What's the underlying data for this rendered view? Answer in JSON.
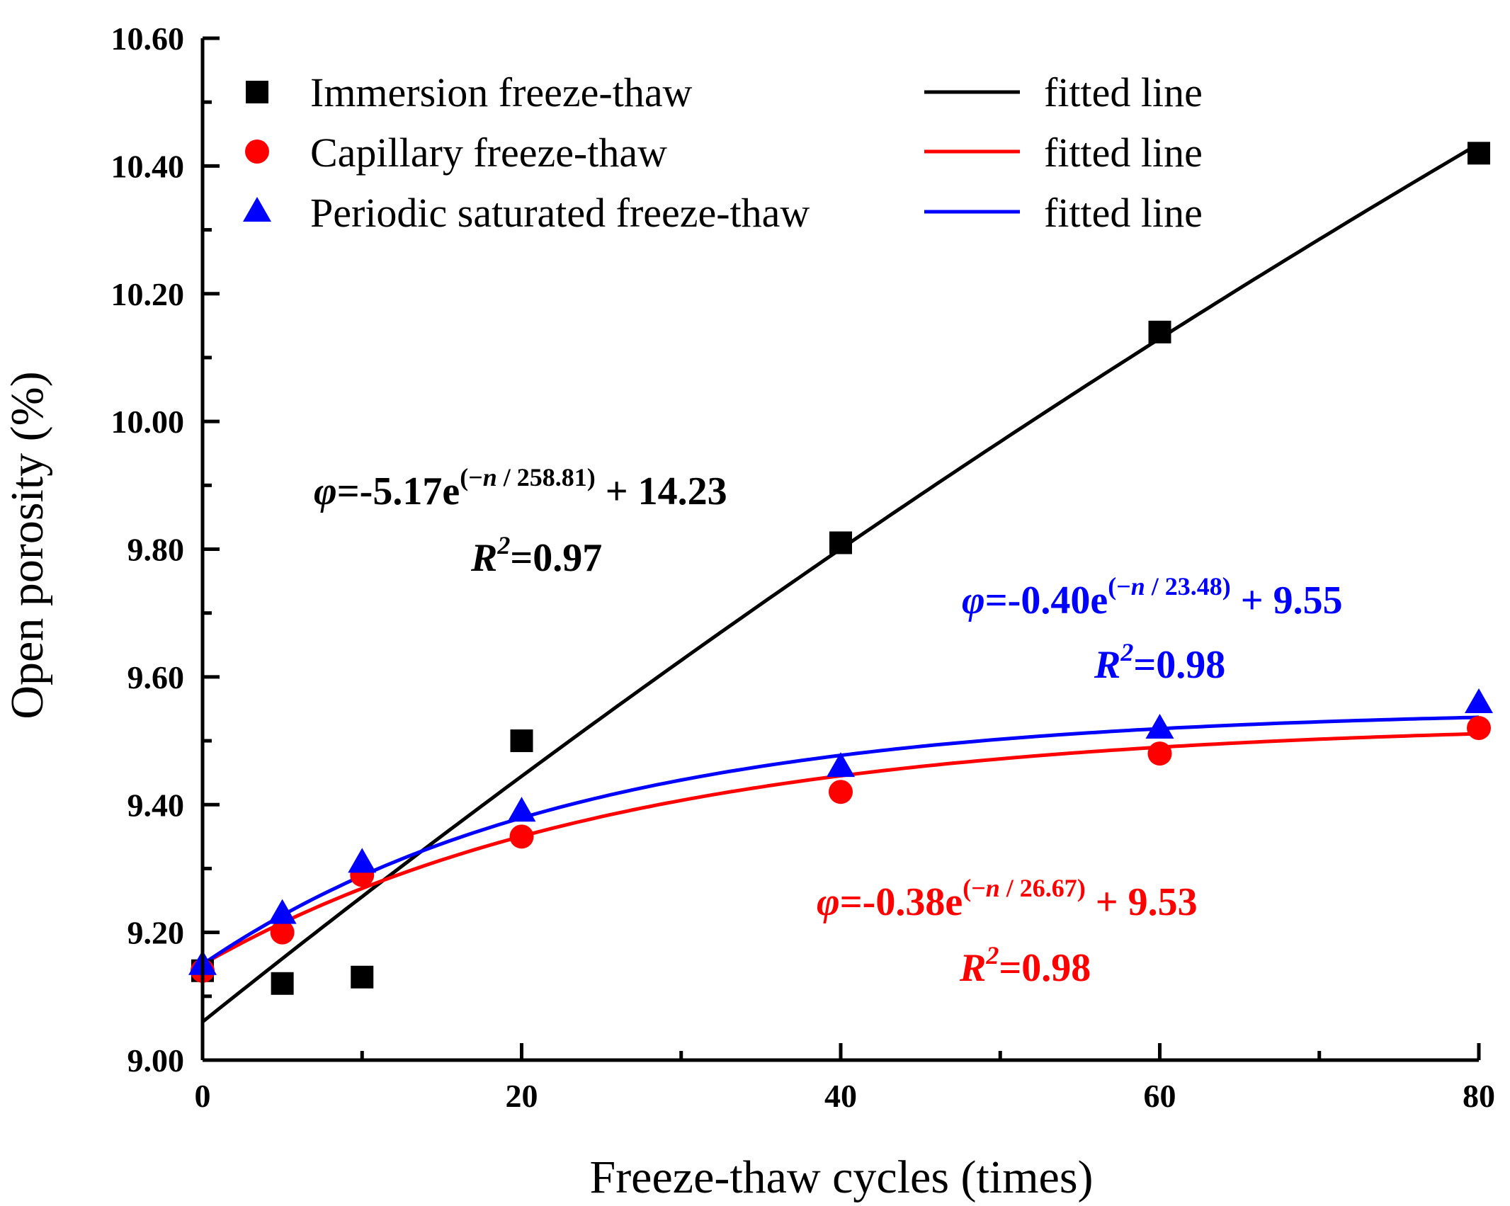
{
  "chart_data": {
    "type": "scatter",
    "title": "",
    "xlabel": "Freeze-thaw cycles (times)",
    "ylabel": "Open porosity (%)",
    "xlim": [
      0,
      80
    ],
    "ylim": [
      9.0,
      10.6
    ],
    "x_ticks": [
      0,
      20,
      40,
      60,
      80
    ],
    "x_tick_labels": [
      "0",
      "20",
      "40",
      "60",
      "80"
    ],
    "y_ticks": [
      9.0,
      9.2,
      9.4,
      9.6,
      9.8,
      10.0,
      10.2,
      10.4,
      10.6
    ],
    "y_tick_labels": [
      "9.00",
      "9.20",
      "9.40",
      "9.60",
      "9.80",
      "10.00",
      "10.20",
      "10.40",
      "10.60"
    ],
    "grid": false,
    "legend_position": "top-left",
    "series": [
      {
        "name": "Immersion freeze-thaw",
        "marker": "square",
        "color": "#000000",
        "x": [
          0,
          5,
          10,
          20,
          40,
          60,
          80
        ],
        "y": [
          9.14,
          9.12,
          9.13,
          9.5,
          9.81,
          10.14,
          10.42
        ],
        "fit": {
          "label": "fitted line",
          "A": -5.17,
          "t": 258.81,
          "c": 14.23,
          "equation": {
            "phi": "φ",
            "coef": "=-5.17e",
            "exp_open": "(",
            "exp_minus": "−",
            "exp_n": "n",
            "exp_rest": " / 258.81)",
            "tail": " + 14.23",
            "r2_R": "R",
            "r2_sup": "2",
            "r2_value": "=0.97"
          }
        }
      },
      {
        "name": "Capillary freeze-thaw",
        "marker": "circle",
        "color": "#ff0000",
        "x": [
          0,
          5,
          10,
          20,
          40,
          60,
          80
        ],
        "y": [
          9.14,
          9.2,
          9.29,
          9.35,
          9.42,
          9.48,
          9.52
        ],
        "fit": {
          "label": "fitted line",
          "A": -0.38,
          "t": 26.67,
          "c": 9.53,
          "equation": {
            "phi": "φ",
            "coef": "=-0.38e",
            "exp_open": "(",
            "exp_minus": "−",
            "exp_n": "n",
            "exp_rest": " / 26.67)",
            "tail": " + 9.53",
            "r2_R": "R",
            "r2_sup": "2",
            "r2_value": "=0.98"
          }
        }
      },
      {
        "name": "Periodic saturated freeze-thaw",
        "marker": "triangle",
        "color": "#0000ff",
        "x": [
          0,
          5,
          10,
          20,
          40,
          60,
          80
        ],
        "y": [
          9.15,
          9.23,
          9.31,
          9.39,
          9.46,
          9.52,
          9.56
        ],
        "fit": {
          "label": "fitted line",
          "A": -0.4,
          "t": 23.48,
          "c": 9.55,
          "equation": {
            "phi": "φ",
            "coef": "=-0.40e",
            "exp_open": "(",
            "exp_minus": "−",
            "exp_n": "n",
            "exp_rest": " / 23.48)",
            "tail": " + 9.55",
            "r2_R": "R",
            "r2_sup": "2",
            "r2_value": "=0.98"
          }
        }
      }
    ]
  }
}
